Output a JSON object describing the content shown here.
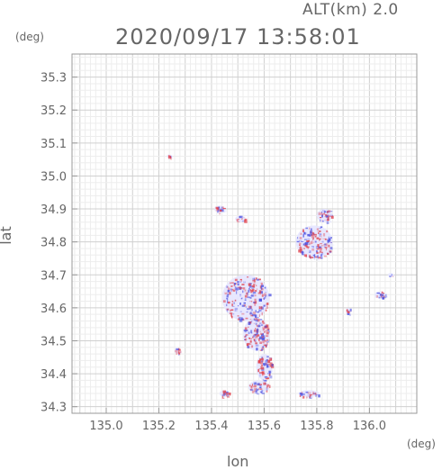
{
  "header": {
    "altitude_label": "ALT(km)  2.0",
    "timestamp": "2020/09/17 13:58:01"
  },
  "axes": {
    "x_unit": "(deg)",
    "y_unit": "(deg)",
    "xlabel": "lon",
    "ylabel": "lat"
  },
  "chart_data": {
    "type": "heatmap",
    "xlabel": "lon",
    "ylabel": "lat",
    "xlim": [
      134.87,
      136.18
    ],
    "ylim": [
      34.28,
      35.37
    ],
    "x_ticks": [
      "135.0",
      "135.2",
      "135.4",
      "135.6",
      "135.8",
      "136.0"
    ],
    "x_tick_values": [
      135.0,
      135.2,
      135.4,
      135.6,
      135.8,
      136.0
    ],
    "y_ticks": [
      "34.3",
      "34.4",
      "34.5",
      "34.6",
      "34.7",
      "34.8",
      "34.9",
      "35.0",
      "35.1",
      "35.2",
      "35.3"
    ],
    "y_tick_values": [
      34.3,
      34.4,
      34.5,
      34.6,
      34.7,
      34.8,
      34.9,
      35.0,
      35.1,
      35.2,
      35.3
    ],
    "grid": true,
    "colors": {
      "positive": "#e0404a",
      "negative": "#4a50e0",
      "neutral": "#e6e6ff"
    },
    "echo_patches": [
      {
        "lon": 135.53,
        "lat": 34.63,
        "dlon": 0.09,
        "dlat": 0.07,
        "dense": 40
      },
      {
        "lon": 135.57,
        "lat": 34.52,
        "dlon": 0.05,
        "dlat": 0.05,
        "dense": 25
      },
      {
        "lon": 135.6,
        "lat": 34.42,
        "dlon": 0.03,
        "dlat": 0.04,
        "dense": 12
      },
      {
        "lon": 135.79,
        "lat": 34.8,
        "dlon": 0.07,
        "dlat": 0.05,
        "dense": 30
      },
      {
        "lon": 135.83,
        "lat": 34.88,
        "dlon": 0.03,
        "dlat": 0.02,
        "dense": 10
      },
      {
        "lon": 135.58,
        "lat": 34.36,
        "dlon": 0.04,
        "dlat": 0.02,
        "dense": 8
      },
      {
        "lon": 135.77,
        "lat": 34.34,
        "dlon": 0.04,
        "dlat": 0.01,
        "dense": 6
      },
      {
        "lon": 136.04,
        "lat": 34.64,
        "dlon": 0.02,
        "dlat": 0.01,
        "dense": 4
      },
      {
        "lon": 135.43,
        "lat": 34.9,
        "dlon": 0.02,
        "dlat": 0.01,
        "dense": 4
      },
      {
        "lon": 135.51,
        "lat": 34.87,
        "dlon": 0.02,
        "dlat": 0.01,
        "dense": 3
      },
      {
        "lon": 135.27,
        "lat": 34.47,
        "dlon": 0.01,
        "dlat": 0.01,
        "dense": 2
      },
      {
        "lon": 135.92,
        "lat": 34.59,
        "dlon": 0.01,
        "dlat": 0.01,
        "dense": 2
      },
      {
        "lon": 135.45,
        "lat": 34.34,
        "dlon": 0.02,
        "dlat": 0.01,
        "dense": 3
      },
      {
        "lon": 135.24,
        "lat": 35.06,
        "dlon": 0.01,
        "dlat": 0.005,
        "dense": 1
      },
      {
        "lon": 136.08,
        "lat": 34.7,
        "dlon": 0.01,
        "dlat": 0.005,
        "dense": 1
      }
    ]
  }
}
